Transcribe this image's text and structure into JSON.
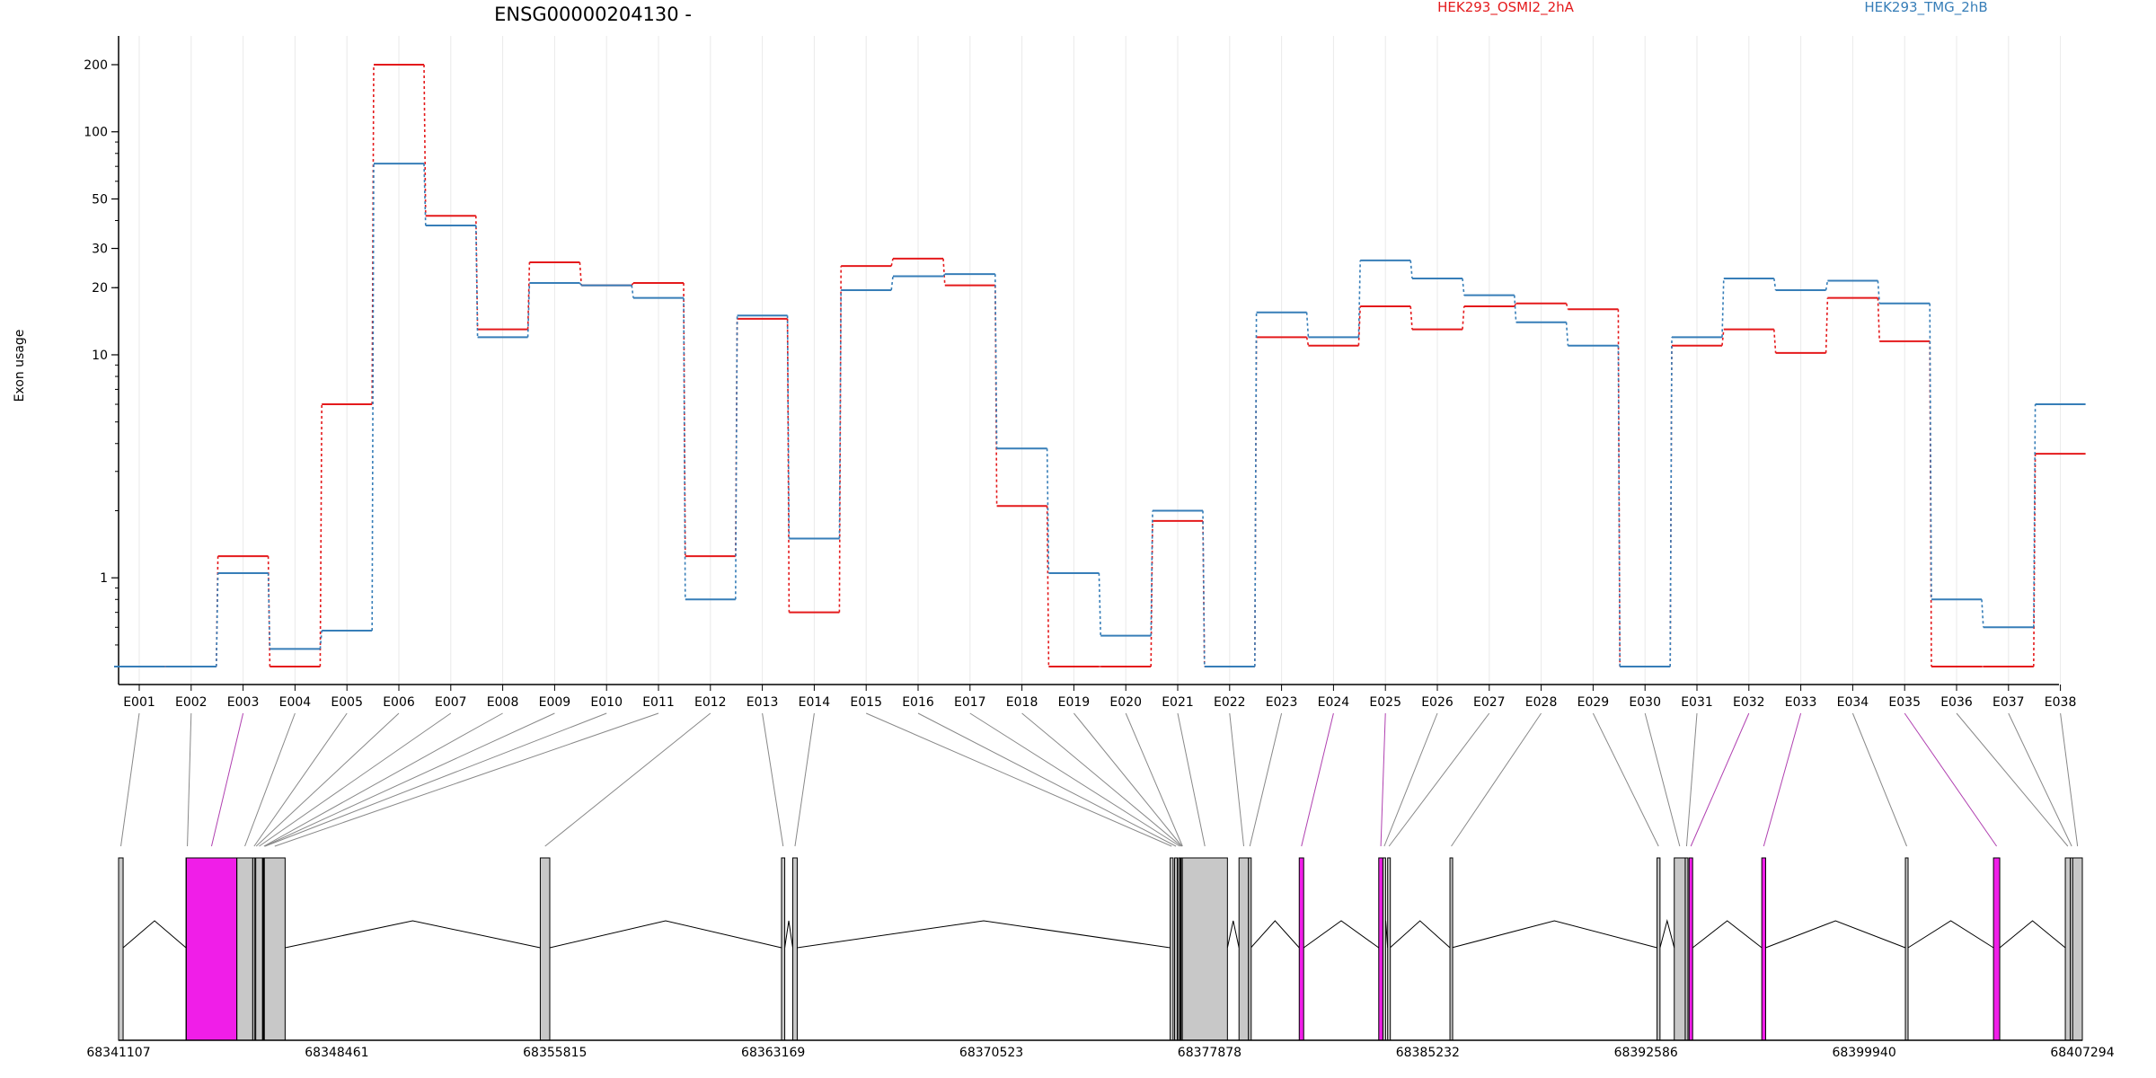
{
  "chart_data": {
    "type": "line",
    "title": "ENSG00000204130 -",
    "ylabel": "Exon usage",
    "y_scale": "log",
    "ylim": [
      0.4,
      250
    ],
    "y_ticks": [
      1,
      10,
      20,
      30,
      50,
      100,
      200
    ],
    "grid": "vertical",
    "legend_position": "top-right",
    "categories": [
      "E001",
      "E002",
      "E003",
      "E004",
      "E005",
      "E006",
      "E007",
      "E008",
      "E009",
      "E010",
      "E011",
      "E012",
      "E013",
      "E014",
      "E015",
      "E016",
      "E017",
      "E018",
      "E019",
      "E020",
      "E021",
      "E022",
      "E023",
      "E024",
      "E025",
      "E026",
      "E027",
      "E028",
      "E029",
      "E030",
      "E031",
      "E032",
      "E033",
      "E034",
      "E035",
      "E036",
      "E037",
      "E038"
    ],
    "series": [
      {
        "name": "HEK293_OSMI2_2hA",
        "color": "#e41a1c",
        "values": [
          0.4,
          0.4,
          1.25,
          0.4,
          6.0,
          200,
          42,
          13,
          26,
          20.5,
          21,
          1.25,
          14.5,
          0.7,
          25,
          27,
          20.5,
          2.1,
          0.4,
          0.4,
          1.8,
          0.4,
          12,
          11,
          16.5,
          13,
          16.5,
          17,
          16,
          0.4,
          11,
          13,
          10.2,
          18,
          11.5,
          0.4,
          0.4,
          3.6
        ]
      },
      {
        "name": "HEK293_TMG_2hB",
        "color": "#377eb8",
        "values": [
          0.4,
          0.4,
          1.05,
          0.48,
          0.58,
          72,
          38,
          12,
          21,
          20.5,
          18,
          0.8,
          15,
          1.5,
          19.5,
          22.5,
          23,
          3.8,
          1.05,
          0.55,
          2.0,
          0.4,
          15.5,
          12,
          26.5,
          22,
          18.5,
          14,
          11,
          0.4,
          12,
          22,
          19.5,
          21.5,
          17,
          0.8,
          0.6,
          6.0
        ]
      }
    ],
    "gene_model": {
      "coord_start": 68341107,
      "coord_end": 68407294,
      "coord_ticks": [
        "68341107",
        "68348461",
        "68355815",
        "68363169",
        "68370523",
        "68377878",
        "68385232",
        "68392586",
        "68399940",
        "68407294"
      ],
      "highlight_color": "#f01ee8",
      "intron_color": "#000000",
      "exon_color": "#c8c8c8",
      "exons": [
        {
          "id": "E001",
          "start": 68341107,
          "end": 68341260,
          "highlight": false
        },
        {
          "id": "E002",
          "start": 68343380,
          "end": 68343390,
          "highlight": false
        },
        {
          "id": "E003",
          "start": 68343390,
          "end": 68345090,
          "highlight": true
        },
        {
          "id": "E004",
          "start": 68345095,
          "end": 68345630,
          "highlight": false
        },
        {
          "id": "E005",
          "start": 68345630,
          "end": 68345700,
          "highlight": false
        },
        {
          "id": "E006",
          "start": 68345700,
          "end": 68345730,
          "highlight": false
        },
        {
          "id": "E007",
          "start": 68345730,
          "end": 68345960,
          "highlight": false
        },
        {
          "id": "E008",
          "start": 68345960,
          "end": 68345980,
          "highlight": false
        },
        {
          "id": "E009",
          "start": 68345980,
          "end": 68346000,
          "highlight": false
        },
        {
          "id": "E010",
          "start": 68346000,
          "end": 68346020,
          "highlight": false
        },
        {
          "id": "E011",
          "start": 68346020,
          "end": 68346720,
          "highlight": false
        },
        {
          "id": "E012",
          "start": 68355320,
          "end": 68355640,
          "highlight": false
        },
        {
          "id": "E013",
          "start": 68363450,
          "end": 68363560,
          "highlight": false
        },
        {
          "id": "E014",
          "start": 68363830,
          "end": 68363980,
          "highlight": false
        },
        {
          "id": "E015",
          "start": 68376550,
          "end": 68376650,
          "highlight": false
        },
        {
          "id": "E016",
          "start": 68376700,
          "end": 68376790,
          "highlight": false
        },
        {
          "id": "E017",
          "start": 68376830,
          "end": 68376880,
          "highlight": false
        },
        {
          "id": "E018",
          "start": 68376880,
          "end": 68376900,
          "highlight": false
        },
        {
          "id": "E019",
          "start": 68376900,
          "end": 68376920,
          "highlight": false
        },
        {
          "id": "E020",
          "start": 68376920,
          "end": 68376960,
          "highlight": false
        },
        {
          "id": "E021",
          "start": 68376960,
          "end": 68378480,
          "highlight": false
        },
        {
          "id": "E022",
          "start": 68378870,
          "end": 68379190,
          "highlight": false
        },
        {
          "id": "E023",
          "start": 68379190,
          "end": 68379270,
          "highlight": false
        },
        {
          "id": "E024",
          "start": 68380900,
          "end": 68381050,
          "highlight": true
        },
        {
          "id": "E025",
          "start": 68383580,
          "end": 68383720,
          "highlight": true
        },
        {
          "id": "E026",
          "start": 68383720,
          "end": 68383750,
          "highlight": false
        },
        {
          "id": "E027",
          "start": 68383880,
          "end": 68383960,
          "highlight": false
        },
        {
          "id": "E028",
          "start": 68385980,
          "end": 68386040,
          "highlight": false
        },
        {
          "id": "E029",
          "start": 68392960,
          "end": 68393060,
          "highlight": false
        },
        {
          "id": "E030",
          "start": 68393540,
          "end": 68393910,
          "highlight": false
        },
        {
          "id": "E031",
          "start": 68393910,
          "end": 68393960,
          "highlight": false
        },
        {
          "id": "E032",
          "start": 68394040,
          "end": 68394160,
          "highlight": true
        },
        {
          "id": "E033",
          "start": 68396490,
          "end": 68396620,
          "highlight": true
        },
        {
          "id": "E034",
          "start": 68401330,
          "end": 68401420,
          "highlight": false
        },
        {
          "id": "E035",
          "start": 68404300,
          "end": 68404510,
          "highlight": true
        },
        {
          "id": "E036",
          "start": 68406720,
          "end": 68406890,
          "highlight": false
        },
        {
          "id": "E037",
          "start": 68406890,
          "end": 68406970,
          "highlight": false
        },
        {
          "id": "E038",
          "start": 68406970,
          "end": 68407294,
          "highlight": false
        }
      ]
    }
  }
}
